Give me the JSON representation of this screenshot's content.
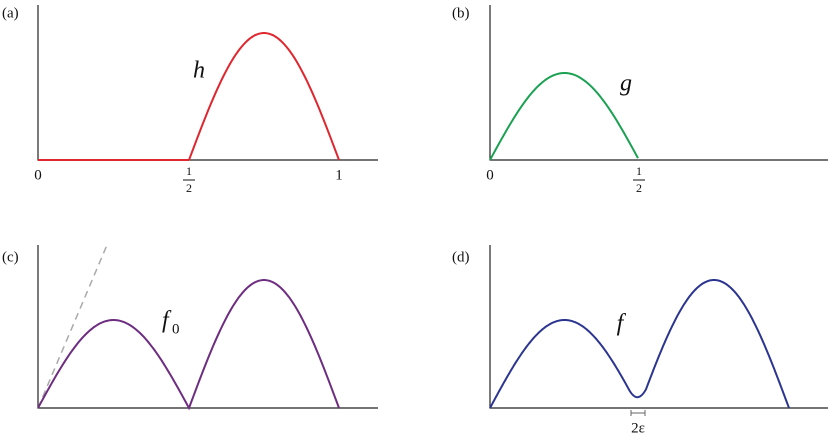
{
  "panels": [
    {
      "label": "(a)",
      "function": "h",
      "ticks": [
        "0",
        {
          "numerator": "1",
          "denominator": "2"
        },
        "1"
      ]
    },
    {
      "label": "(b)",
      "function": "g",
      "ticks": [
        "0",
        {
          "numerator": "1",
          "denominator": "2"
        }
      ]
    },
    {
      "label": "(c)",
      "function": "f",
      "subscript": "0"
    },
    {
      "label": "(d)",
      "function": "f",
      "annotation": "2ε"
    }
  ]
}
